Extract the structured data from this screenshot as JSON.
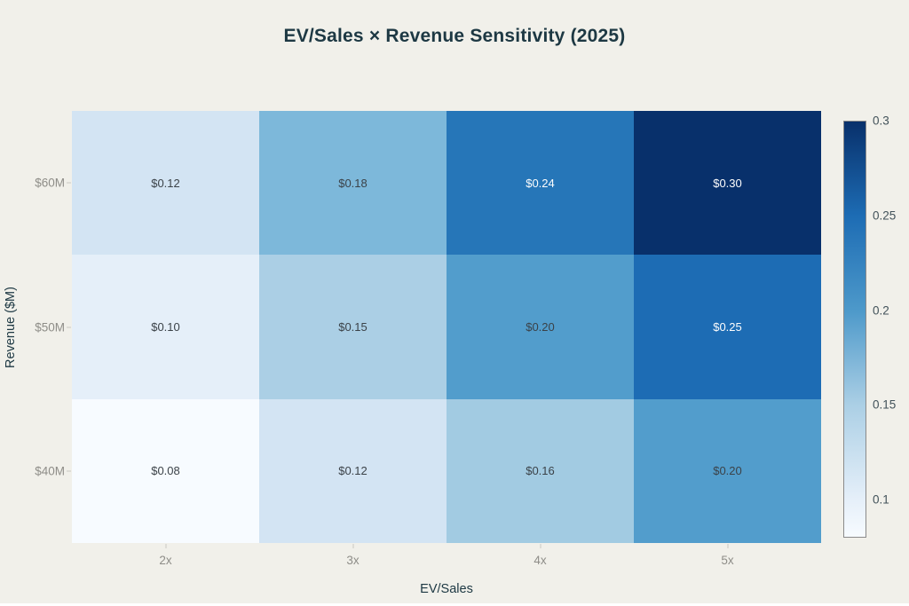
{
  "colors": {
    "background": "#f1f0ea",
    "title_text": "#1d3843",
    "axis_title_text": "#1d3843",
    "tick_text": "#8e8d88",
    "tick_mark": "#c9c8c2",
    "colorbar_tick_text": "#42525a",
    "colorbar_border": "#8a8a8a",
    "cell_text_dark": "#3b4248",
    "cell_text_light": "#fdfdfd"
  },
  "chart_data": {
    "type": "heatmap",
    "title": "EV/Sales × Revenue Sensitivity (2025)",
    "xlabel": "EV/Sales",
    "ylabel": "Revenue ($M)",
    "x_categories": [
      "2x",
      "3x",
      "4x",
      "5x"
    ],
    "y_categories_top_to_bottom": [
      "$60M",
      "$50M",
      "$40M"
    ],
    "rows": [
      {
        "y": "$60M",
        "values": [
          0.12,
          0.18,
          0.24,
          0.3
        ],
        "labels": [
          "$0.12",
          "$0.18",
          "$0.24",
          "$0.30"
        ],
        "cell_colors": [
          "#d3e4f3",
          "#7db8da",
          "#2676b8",
          "#08306b"
        ],
        "text_tone": [
          "dark",
          "dark",
          "light",
          "light"
        ]
      },
      {
        "y": "$50M",
        "values": [
          0.1,
          0.15,
          0.2,
          0.25
        ],
        "labels": [
          "$0.10",
          "$0.15",
          "$0.20",
          "$0.25"
        ],
        "cell_colors": [
          "#e5eff9",
          "#abcfe5",
          "#529dcc",
          "#1d6cb4"
        ],
        "text_tone": [
          "dark",
          "dark",
          "dark",
          "light"
        ]
      },
      {
        "y": "$40M",
        "values": [
          0.08,
          0.12,
          0.16,
          0.2
        ],
        "labels": [
          "$0.08",
          "$0.12",
          "$0.16",
          "$0.20"
        ],
        "cell_colors": [
          "#f7fbff",
          "#d3e4f3",
          "#a2cbe2",
          "#529dcc"
        ],
        "text_tone": [
          "dark",
          "dark",
          "dark",
          "dark"
        ]
      }
    ],
    "colorscale": "Blues",
    "zmin": 0.08,
    "zmax": 0.3,
    "colorbar": {
      "tick_labels": [
        "0.3",
        "0.25",
        "0.2",
        "0.15",
        "0.1"
      ],
      "tick_values": [
        0.3,
        0.25,
        0.2,
        0.15,
        0.1
      ],
      "gradient_stops": [
        {
          "value": 0.3,
          "color": "#08306b"
        },
        {
          "value": 0.25,
          "color": "#1d6cb4"
        },
        {
          "value": 0.2,
          "color": "#4d99ca"
        },
        {
          "value": 0.15,
          "color": "#abcfe5"
        },
        {
          "value": 0.1,
          "color": "#e5eff9"
        },
        {
          "value": 0.08,
          "color": "#f7fbff"
        }
      ],
      "legend_position": "right"
    },
    "grid": false
  }
}
